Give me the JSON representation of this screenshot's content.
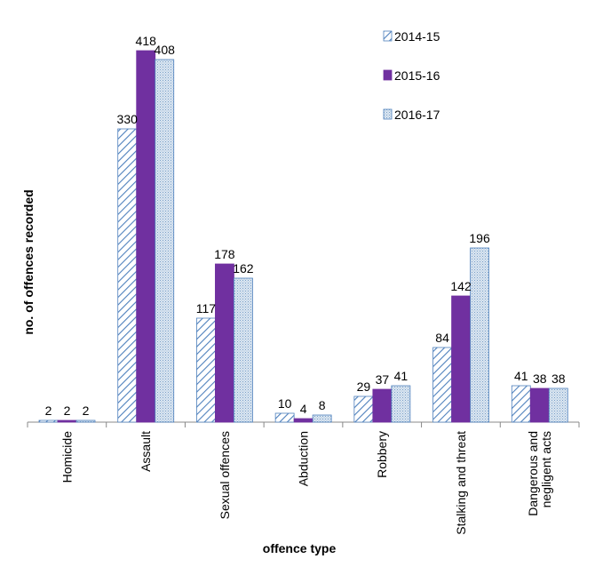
{
  "chart_data": {
    "type": "bar",
    "title": "",
    "xlabel": "offence type",
    "ylabel": "no. of offences recorded",
    "categories": [
      [
        "Homicide"
      ],
      [
        "Assault"
      ],
      [
        "Sexual offences"
      ],
      [
        "Abduction"
      ],
      [
        "Robbery"
      ],
      [
        "Stalking and threat"
      ],
      [
        "Dangerous and",
        "negligent acts"
      ]
    ],
    "series": [
      {
        "name": "2014-15",
        "values": [
          2,
          330,
          117,
          10,
          29,
          84,
          41
        ],
        "color": "#4f81bd",
        "fill": "diagonal-hatch"
      },
      {
        "name": "2015-16",
        "values": [
          2,
          418,
          178,
          4,
          37,
          142,
          38
        ],
        "color": "#7030a0",
        "fill": "solid"
      },
      {
        "name": "2016-17",
        "values": [
          2,
          408,
          162,
          8,
          41,
          196,
          38
        ],
        "color": "#4f81bd",
        "fill": "light-dots"
      }
    ],
    "ylim": [
      0,
      450
    ],
    "grid": false,
    "legend": "top-right",
    "data_labels": true
  }
}
